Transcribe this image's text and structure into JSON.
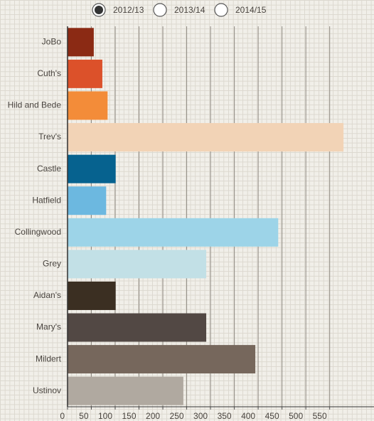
{
  "chart_data": {
    "type": "barh",
    "options": [
      "2012/13",
      "2013/14",
      "2014/15"
    ],
    "selected": 0,
    "categories": [
      "JoBo",
      "Cuth's",
      "Hild and Bede",
      "Trev's",
      "Castle",
      "Hatfield",
      "Collingwood",
      "Grey",
      "Aidan's",
      "Mary's",
      "Mildert",
      "Ustinov"
    ],
    "values": [
      55,
      73,
      84,
      579,
      101,
      81,
      442,
      291,
      101,
      291,
      394,
      243
    ],
    "colors": [
      "#8b2a14",
      "#dc512a",
      "#f38c39",
      "#f2d3b6",
      "#06628f",
      "#6cb8e0",
      "#9dd4e8",
      "#c2e0e6",
      "#3b2f22",
      "#524844",
      "#76675c",
      "#b0a9a0"
    ],
    "xlim": [
      0,
      643
    ],
    "xticks": [
      0,
      50,
      100,
      150,
      200,
      250,
      300,
      350,
      400,
      450,
      500,
      550
    ],
    "grid": true
  }
}
